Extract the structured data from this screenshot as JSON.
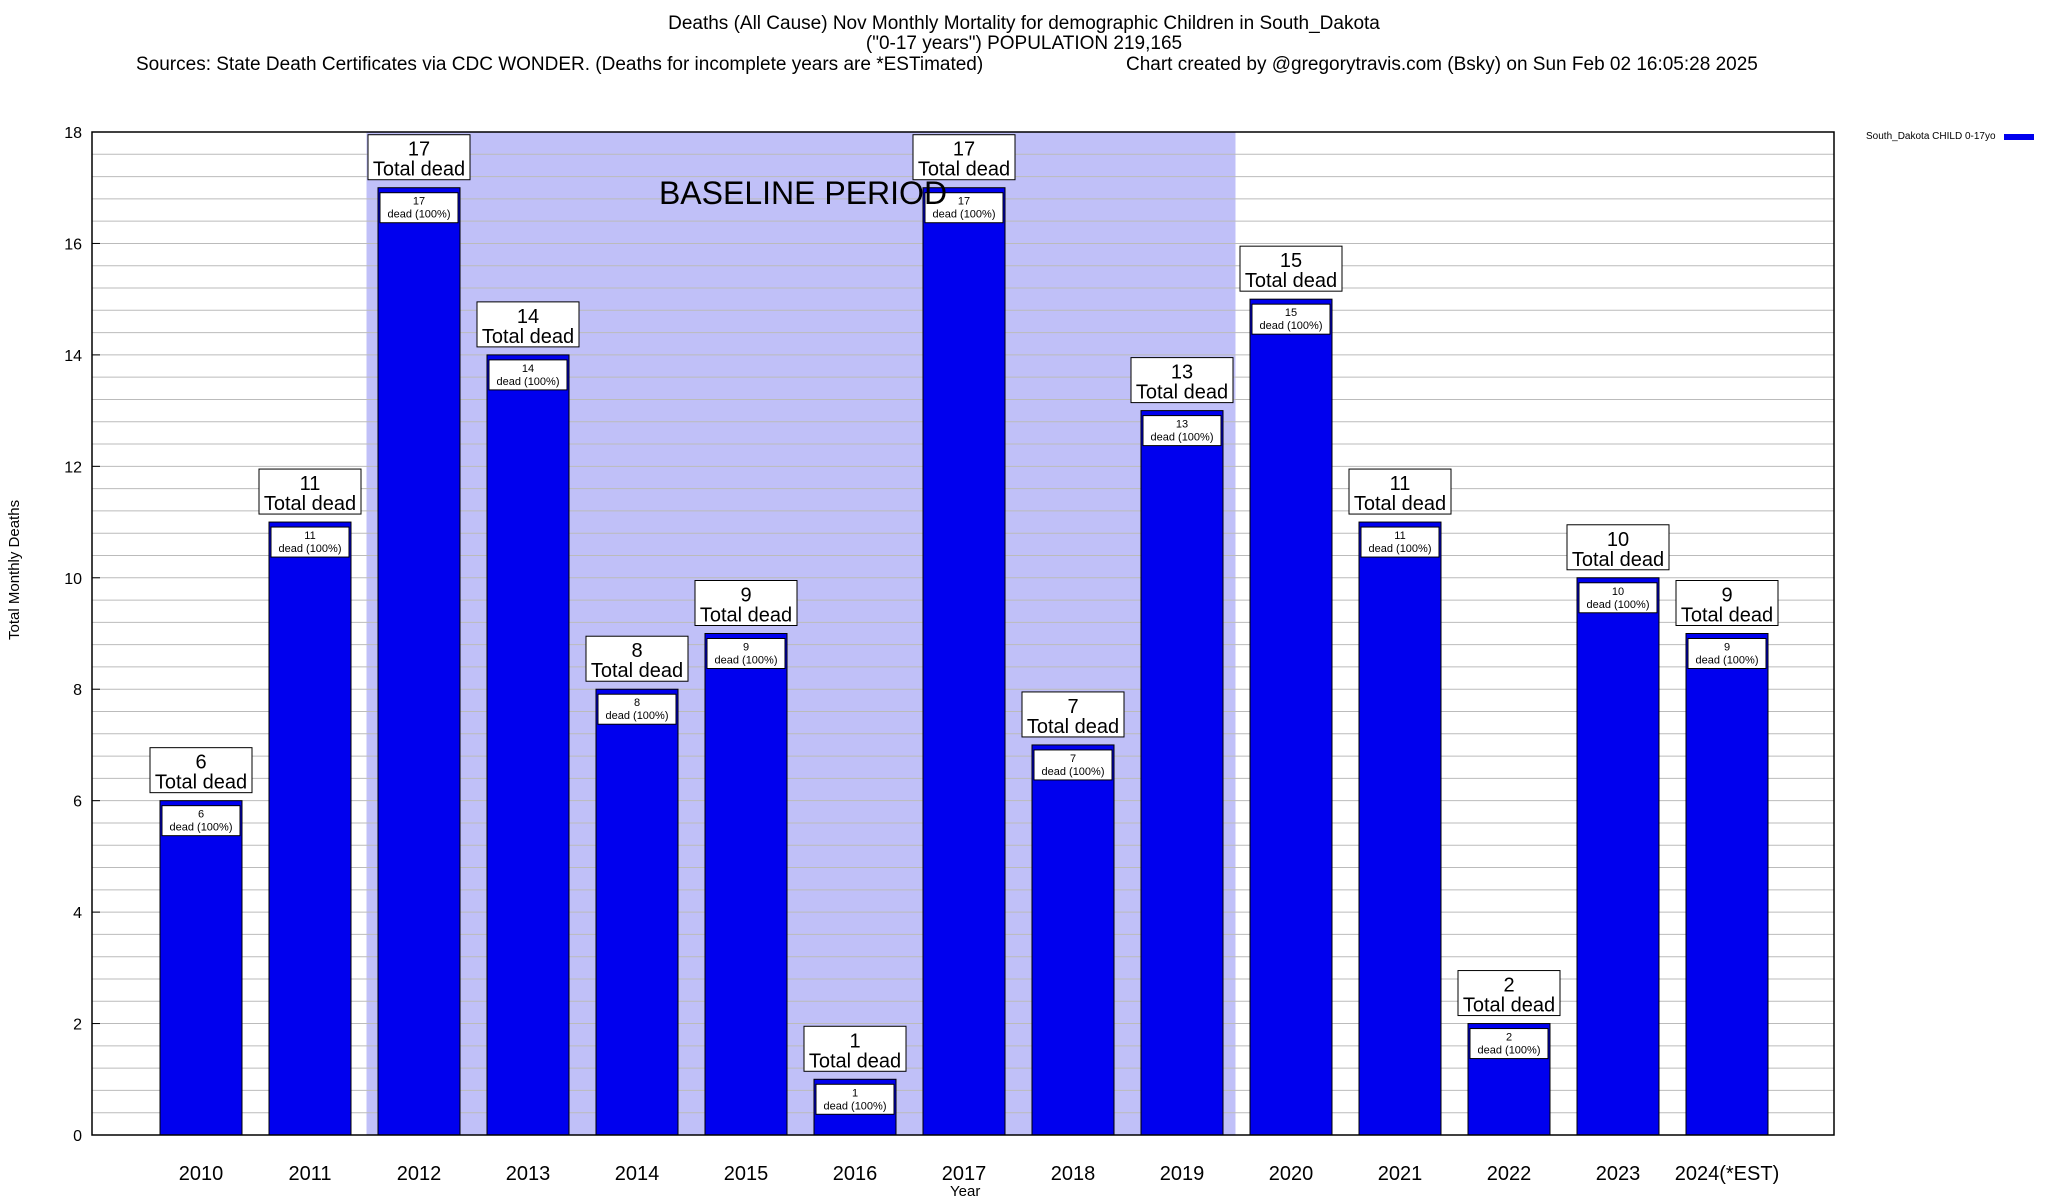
{
  "header": {
    "title": "Deaths (All Cause) Nov Monthly Mortality for demographic Children in South_Dakota",
    "subtitle": "(\"0-17 years\") POPULATION 219,165",
    "sources": "Sources: State Death Certificates via CDC WONDER. (Deaths for incomplete years are *ESTimated)",
    "credit": "Chart created by @gregorytravis.com (Bsky) on Sun Feb 02 16:05:28 2025"
  },
  "legend": {
    "label": "South_Dakota CHILD 0-17yo"
  },
  "colors": {
    "bar": "#0000ee",
    "baseline": "#c0c0f8",
    "grid": "#bbbbbb"
  },
  "chart_data": {
    "type": "bar",
    "title": "Deaths (All Cause) Nov Monthly Mortality for demographic Children in South_Dakota",
    "xlabel": "Year",
    "ylabel": "Total Monthly Deaths",
    "ylim": [
      0,
      18
    ],
    "yticks": [
      0,
      2,
      4,
      6,
      8,
      10,
      12,
      14,
      16,
      18
    ],
    "grid": true,
    "legend_position": "top-right",
    "categories": [
      "2010",
      "2011",
      "2012",
      "2013",
      "2014",
      "2015",
      "2016",
      "2017",
      "2018",
      "2019",
      "2020",
      "2021",
      "2022",
      "2023",
      "2024(*EST)"
    ],
    "series": [
      {
        "name": "South_Dakota CHILD 0-17yo",
        "values": [
          6,
          11,
          17,
          14,
          8,
          9,
          1,
          17,
          7,
          13,
          15,
          11,
          2,
          10,
          9
        ]
      }
    ],
    "total_label_suffix": "Total dead",
    "inner_label_suffix": "dead (100%)",
    "baseline": {
      "label": "BASELINE PERIOD",
      "from": "2012",
      "to": "2019"
    }
  }
}
